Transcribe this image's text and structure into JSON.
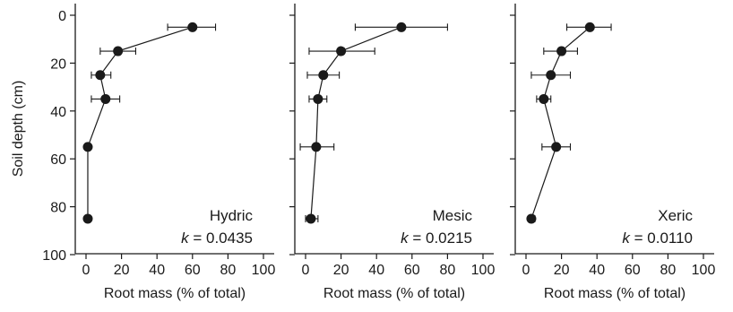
{
  "chart_data": [
    {
      "type": "scatter",
      "title": "Hydric",
      "k_label": "k",
      "k_value": "= 0.0435",
      "xlabel": "Root mass (% of total)",
      "ylabel": "Soil depth (cm)",
      "xlim": [
        0,
        100
      ],
      "ylim": [
        0,
        100
      ],
      "y_inverted": true,
      "xticks": [
        "0",
        "20",
        "40",
        "60",
        "80",
        "100"
      ],
      "yticks": [
        "0",
        "20",
        "40",
        "60",
        "80",
        "100"
      ],
      "series": [
        {
          "points": [
            {
              "depth": 5,
              "mass": 60,
              "err_low": 46,
              "err_high": 73
            },
            {
              "depth": 15,
              "mass": 18,
              "err_low": 8,
              "err_high": 28
            },
            {
              "depth": 25,
              "mass": 8,
              "err_low": 3,
              "err_high": 14
            },
            {
              "depth": 35,
              "mass": 11,
              "err_low": 3,
              "err_high": 19
            },
            {
              "depth": 55,
              "mass": 1,
              "err_low": 1,
              "err_high": 1
            },
            {
              "depth": 85,
              "mass": 1,
              "err_low": 1,
              "err_high": 1
            }
          ]
        }
      ]
    },
    {
      "type": "scatter",
      "title": "Mesic",
      "k_label": "k",
      "k_value": "= 0.0215",
      "xlabel": "Root mass (% of total)",
      "ylabel": "",
      "xlim": [
        0,
        100
      ],
      "ylim": [
        0,
        100
      ],
      "y_inverted": true,
      "xticks": [
        "0",
        "20",
        "40",
        "60",
        "80",
        "100"
      ],
      "yticks": [],
      "series": [
        {
          "points": [
            {
              "depth": 5,
              "mass": 54,
              "err_low": 28,
              "err_high": 80
            },
            {
              "depth": 15,
              "mass": 20,
              "err_low": 2,
              "err_high": 39
            },
            {
              "depth": 25,
              "mass": 10,
              "err_low": 1,
              "err_high": 19
            },
            {
              "depth": 35,
              "mass": 7,
              "err_low": 2,
              "err_high": 12
            },
            {
              "depth": 55,
              "mass": 6,
              "err_low": -3,
              "err_high": 16
            },
            {
              "depth": 85,
              "mass": 3,
              "err_low": 0,
              "err_high": 7
            }
          ]
        }
      ]
    },
    {
      "type": "scatter",
      "title": "Xeric",
      "k_label": "k",
      "k_value": "= 0.0110",
      "xlabel": "Root mass (% of total)",
      "ylabel": "",
      "xlim": [
        0,
        100
      ],
      "ylim": [
        0,
        100
      ],
      "y_inverted": true,
      "xticks": [
        "0",
        "20",
        "40",
        "60",
        "80",
        "100"
      ],
      "yticks": [],
      "series": [
        {
          "points": [
            {
              "depth": 5,
              "mass": 36,
              "err_low": 23,
              "err_high": 48
            },
            {
              "depth": 15,
              "mass": 20,
              "err_low": 10,
              "err_high": 29
            },
            {
              "depth": 25,
              "mass": 14,
              "err_low": 3,
              "err_high": 25
            },
            {
              "depth": 35,
              "mass": 10,
              "err_low": 6,
              "err_high": 14
            },
            {
              "depth": 55,
              "mass": 17,
              "err_low": 9,
              "err_high": 25
            },
            {
              "depth": 85,
              "mass": 3,
              "err_low": 2,
              "err_high": 5
            }
          ]
        }
      ]
    }
  ]
}
